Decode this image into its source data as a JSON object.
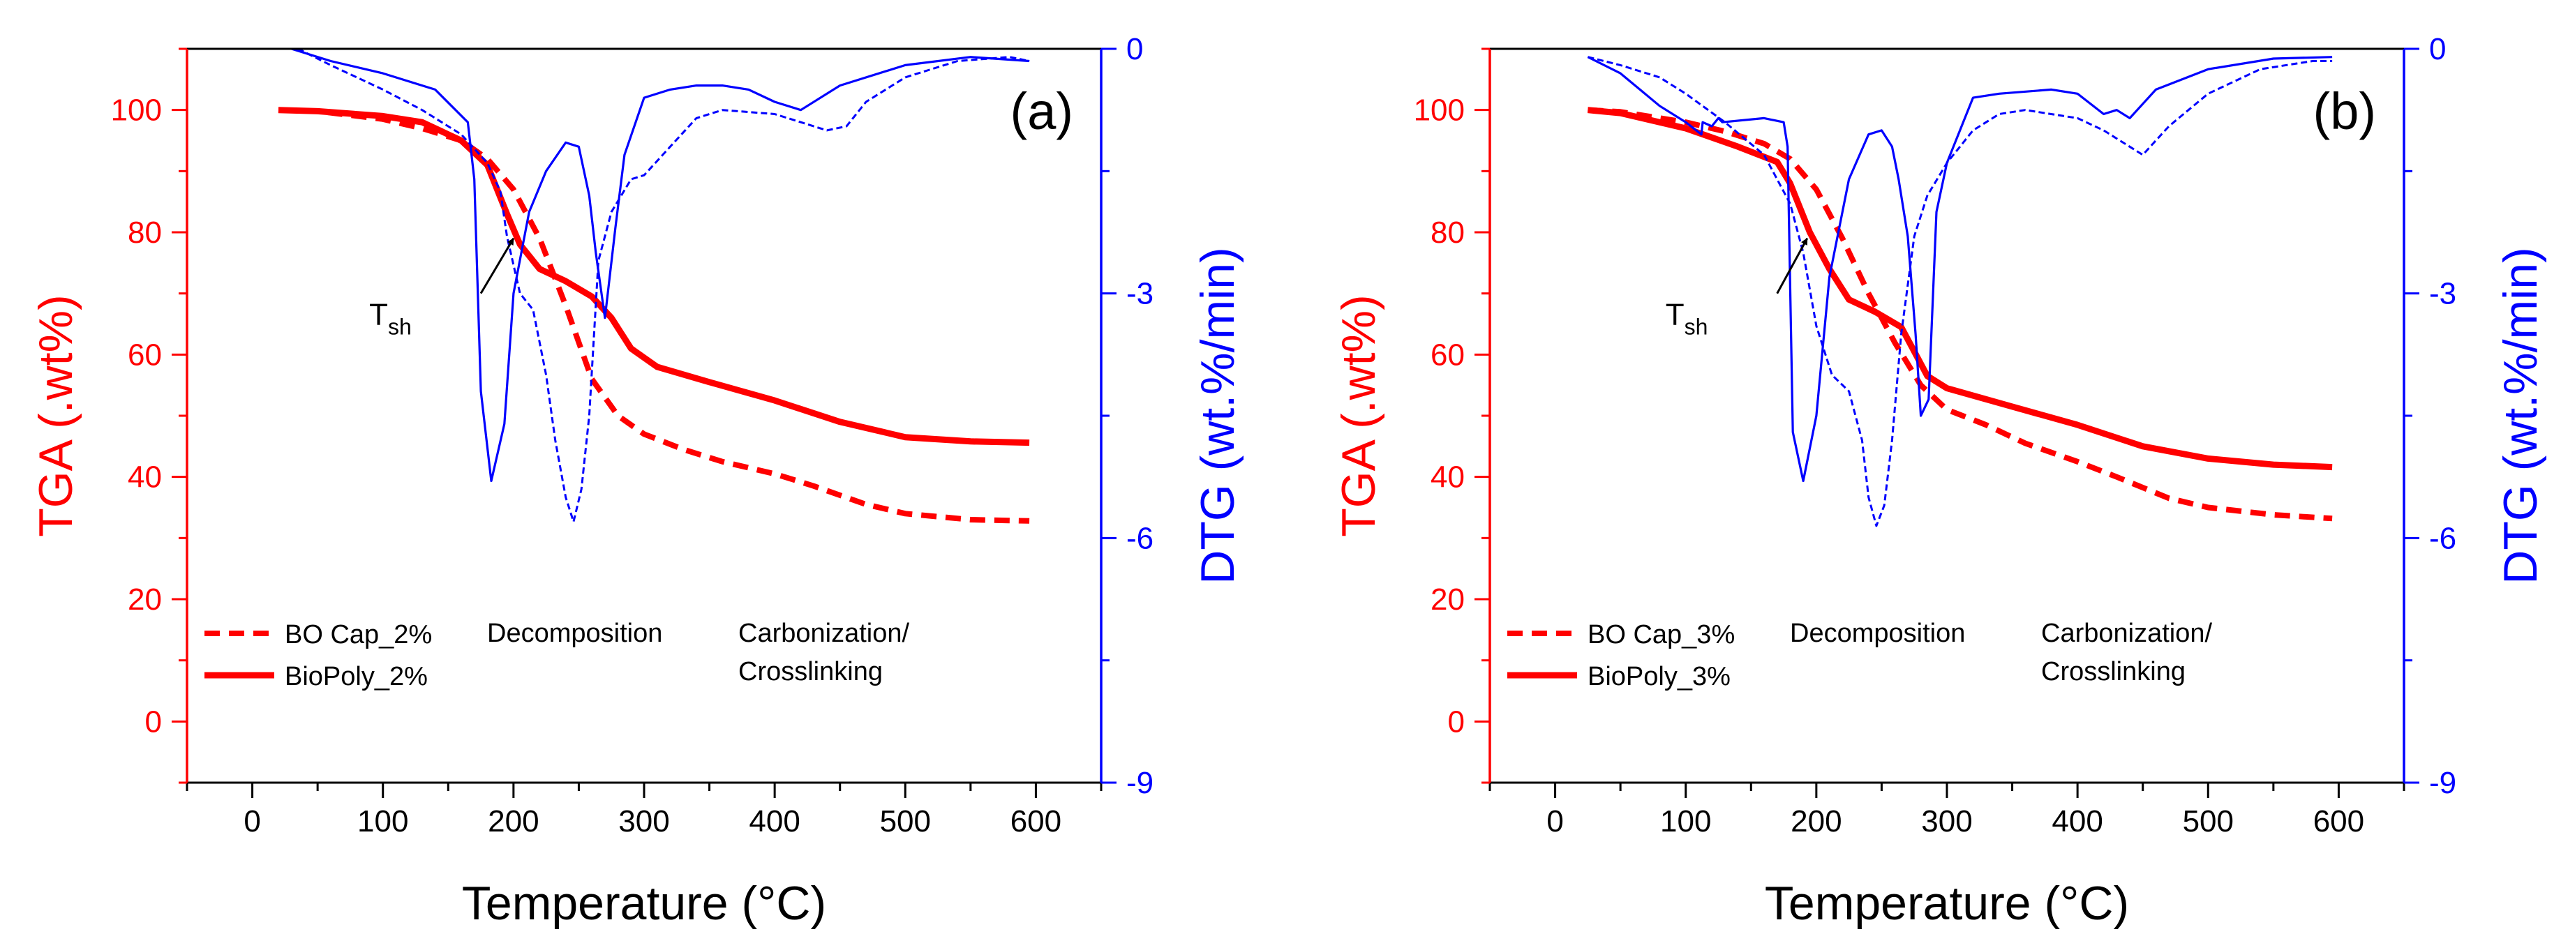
{
  "colors": {
    "tga": "#ff0000",
    "dtg": "#0000ff",
    "axis": "#000000",
    "annotation": "#000000"
  },
  "chart_data": [
    {
      "type": "line",
      "panel_label": "(a)",
      "xlabel": "Temperature (°C)",
      "ylabel_left": "TGA (.wt%)",
      "ylabel_right": "DTG (wt.%/min)",
      "xlim": [
        -50,
        650
      ],
      "ylim_left": [
        -10,
        110
      ],
      "ylim_right": [
        -9,
        0
      ],
      "xticks": [
        0,
        100,
        200,
        300,
        400,
        500,
        600
      ],
      "yticks_left": [
        0,
        20,
        40,
        60,
        80,
        100
      ],
      "yticks_right": [
        -9,
        -6,
        -3,
        0
      ],
      "region_labels": [
        "Decomposition",
        "Carbonization/",
        "Crosslinking"
      ],
      "annotation": {
        "text": "T",
        "subscript": "sh",
        "arrow_from": [
          175,
          70
        ],
        "arrow_to": [
          200,
          79
        ]
      },
      "legend": [
        {
          "label": "BO Cap_2%",
          "style": "dashed"
        },
        {
          "label": "BioPoly_2%",
          "style": "solid"
        }
      ],
      "series": [
        {
          "name": "BO Cap_2%",
          "axis": "left",
          "style": "dashed",
          "color": "#ff0000",
          "x": [
            20,
            50,
            100,
            130,
            160,
            180,
            200,
            220,
            240,
            260,
            280,
            300,
            330,
            360,
            400,
            430,
            470,
            500,
            550,
            595
          ],
          "y": [
            100,
            99.8,
            98.5,
            97,
            95,
            92,
            87,
            79,
            68,
            56,
            50,
            47,
            44.5,
            42.5,
            40.5,
            38.5,
            35.5,
            34,
            33,
            32.8
          ]
        },
        {
          "name": "BioPoly_2%",
          "axis": "left",
          "style": "solid",
          "color": "#ff0000",
          "x": [
            20,
            50,
            100,
            130,
            160,
            180,
            195,
            205,
            220,
            240,
            260,
            275,
            290,
            310,
            350,
            400,
            450,
            500,
            550,
            595
          ],
          "y": [
            100,
            99.8,
            99,
            98,
            95,
            91,
            83,
            78,
            74,
            72,
            69.5,
            66,
            61,
            58,
            55.5,
            52.5,
            49,
            46.5,
            45.8,
            45.6
          ]
        },
        {
          "name": "",
          "axis": "right",
          "style": "dashed-thin",
          "color": "#0000ff",
          "x": [
            35,
            60,
            80,
            100,
            130,
            160,
            180,
            190,
            195,
            205,
            215,
            225,
            232,
            240,
            246,
            252,
            258,
            265,
            275,
            290,
            300,
            320,
            340,
            360,
            400,
            420,
            440,
            455,
            470,
            500,
            540,
            580,
            595
          ],
          "y": [
            0,
            -0.2,
            -0.35,
            -0.5,
            -0.75,
            -1.05,
            -1.4,
            -1.75,
            -2.3,
            -3.0,
            -3.2,
            -4.0,
            -4.8,
            -5.5,
            -5.8,
            -5.4,
            -4.5,
            -2.6,
            -2.0,
            -1.6,
            -1.55,
            -1.2,
            -0.85,
            -0.75,
            -0.8,
            -0.9,
            -1.0,
            -0.95,
            -0.65,
            -0.35,
            -0.15,
            -0.1,
            -0.15
          ]
        },
        {
          "name": "",
          "axis": "right",
          "style": "solid-thin",
          "color": "#0000ff",
          "x": [
            30,
            60,
            100,
            140,
            165,
            170,
            175,
            183,
            193,
            200,
            212,
            225,
            240,
            250,
            258,
            263,
            270,
            278,
            285,
            300,
            320,
            340,
            360,
            380,
            400,
            420,
            450,
            500,
            550,
            595
          ],
          "y": [
            0,
            -0.15,
            -0.3,
            -0.5,
            -0.9,
            -1.6,
            -4.2,
            -5.3,
            -4.6,
            -3.0,
            -2.0,
            -1.5,
            -1.15,
            -1.2,
            -1.8,
            -2.5,
            -3.3,
            -2.2,
            -1.3,
            -0.6,
            -0.5,
            -0.45,
            -0.45,
            -0.5,
            -0.65,
            -0.75,
            -0.45,
            -0.2,
            -0.1,
            -0.15
          ]
        }
      ]
    },
    {
      "type": "line",
      "panel_label": "(b)",
      "xlabel": "Temperature (°C)",
      "ylabel_left": "TGA (.wt%)",
      "ylabel_right": "DTG (wt.%/min)",
      "xlim": [
        -50,
        650
      ],
      "ylim_left": [
        -10,
        110
      ],
      "ylim_right": [
        -9,
        0
      ],
      "xticks": [
        0,
        100,
        200,
        300,
        400,
        500,
        600
      ],
      "yticks_left": [
        0,
        20,
        40,
        60,
        80,
        100
      ],
      "yticks_right": [
        -9,
        -6,
        -3,
        0
      ],
      "region_labels": [
        "Decomposition",
        "Carbonization/",
        "Crosslinking"
      ],
      "annotation": {
        "text": "T",
        "subscript": "sh",
        "arrow_from": [
          170,
          70
        ],
        "arrow_to": [
          193,
          79
        ]
      },
      "legend": [
        {
          "label": "BO Cap_3%",
          "style": "dashed"
        },
        {
          "label": "BioPoly_3%",
          "style": "solid"
        }
      ],
      "series": [
        {
          "name": "BO Cap_3%",
          "axis": "left",
          "style": "dashed",
          "color": "#ff0000",
          "x": [
            25,
            50,
            100,
            130,
            160,
            180,
            200,
            220,
            240,
            260,
            280,
            300,
            330,
            360,
            400,
            430,
            470,
            500,
            550,
            595
          ],
          "y": [
            100,
            99.7,
            98,
            96.5,
            94.5,
            92,
            87,
            79,
            70,
            62,
            55,
            51,
            48.5,
            45.5,
            42.5,
            40,
            36.5,
            35,
            33.8,
            33.2
          ]
        },
        {
          "name": "BioPoly_3%",
          "axis": "left",
          "style": "solid",
          "color": "#ff0000",
          "x": [
            25,
            50,
            100,
            140,
            170,
            180,
            195,
            210,
            225,
            245,
            265,
            275,
            285,
            300,
            350,
            400,
            450,
            500,
            550,
            595
          ],
          "y": [
            100,
            99.5,
            97,
            94,
            91.5,
            88,
            80,
            74,
            69,
            67,
            64.5,
            60.5,
            56.5,
            54.5,
            51.5,
            48.5,
            45,
            43,
            42,
            41.6
          ]
        },
        {
          "name": "",
          "axis": "right",
          "style": "dashed-thin",
          "color": "#0000ff",
          "x": [
            25,
            50,
            80,
            100,
            130,
            160,
            180,
            190,
            200,
            212,
            225,
            235,
            240,
            246,
            252,
            258,
            265,
            275,
            285,
            300,
            320,
            340,
            360,
            400,
            420,
            440,
            450,
            470,
            500,
            540,
            580,
            595
          ],
          "y": [
            -0.1,
            -0.2,
            -0.35,
            -0.55,
            -0.9,
            -1.3,
            -1.9,
            -2.5,
            -3.4,
            -4.0,
            -4.2,
            -4.8,
            -5.5,
            -5.85,
            -5.6,
            -4.8,
            -3.5,
            -2.3,
            -1.8,
            -1.4,
            -1.0,
            -0.8,
            -0.75,
            -0.85,
            -1.0,
            -1.2,
            -1.3,
            -0.95,
            -0.55,
            -0.25,
            -0.15,
            -0.15
          ]
        },
        {
          "name": "",
          "axis": "right",
          "style": "solid-thin",
          "color": "#0000ff",
          "x": [
            25,
            50,
            80,
            100,
            112,
            113,
            120,
            125,
            128,
            160,
            175,
            178,
            182,
            190,
            200,
            210,
            225,
            240,
            250,
            258,
            263,
            270,
            276,
            280,
            286,
            292,
            300,
            320,
            340,
            380,
            400,
            420,
            430,
            440,
            460,
            500,
            550,
            595
          ],
          "y": [
            -0.1,
            -0.3,
            -0.7,
            -0.9,
            -1.05,
            -0.9,
            -0.95,
            -0.85,
            -0.9,
            -0.85,
            -0.9,
            -1.2,
            -4.7,
            -5.3,
            -4.5,
            -2.8,
            -1.6,
            -1.05,
            -1.0,
            -1.2,
            -1.6,
            -2.3,
            -3.5,
            -4.5,
            -4.3,
            -2.0,
            -1.4,
            -0.6,
            -0.55,
            -0.5,
            -0.55,
            -0.8,
            -0.75,
            -0.85,
            -0.5,
            -0.25,
            -0.12,
            -0.1
          ]
        }
      ]
    }
  ]
}
